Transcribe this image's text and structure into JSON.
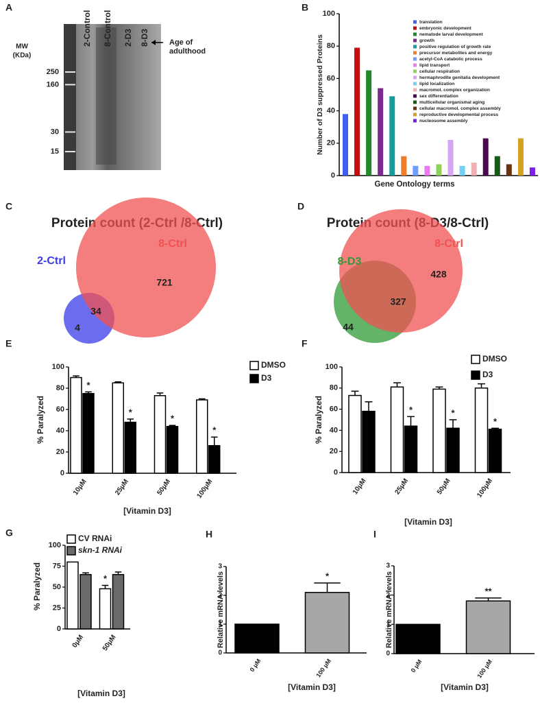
{
  "chart_data": [
    {
      "type": "gel",
      "panel": "A",
      "lanes": [
        "2-Control",
        "8-Control",
        "2-D3",
        "8-D3"
      ],
      "mw_label": [
        "MW",
        "(KDa)"
      ],
      "markers": [
        250,
        160,
        30,
        15
      ],
      "annotation": [
        "Age of",
        "adulthood"
      ]
    },
    {
      "type": "bar",
      "panel": "B",
      "ylabel": "Number of D3 suppressed Proteins",
      "xlabel": "Gene Ontology terms",
      "categories": [
        "translation",
        "embryonic development",
        "nematode larval development",
        "growth",
        "positive regulation of growth rate",
        "precursor metabolites and energy",
        "acetyl-CoA catabolic process",
        "lipid transport",
        "cellular respiration",
        "hermaphrodite genitalia development",
        "lipid localization",
        "macromol. complex organization",
        "sex differentiation",
        "multicellular organismal aging",
        "cellular macromol. complex assembly",
        "reproductive developmental process",
        "nucleosome assembly"
      ],
      "values": [
        38,
        79,
        65,
        54,
        49,
        12,
        6,
        6,
        7,
        22,
        6,
        8,
        23,
        12,
        7,
        23,
        5
      ],
      "colors": [
        "#3f5ef0",
        "#c40d0d",
        "#1e8a2a",
        "#7a2c8c",
        "#179c9c",
        "#f07d2c",
        "#6f9cff",
        "#ee7bee",
        "#8fd25a",
        "#d6a6f5",
        "#6fd2f2",
        "#eeb0b0",
        "#4a0a50",
        "#155a16",
        "#6a3212",
        "#d6a020",
        "#7c1ee6"
      ],
      "ylim": [
        0,
        100
      ],
      "yticks": [
        0,
        20,
        40,
        60,
        80,
        100
      ],
      "legend": true
    },
    {
      "type": "venn",
      "panel": "C",
      "title": "Protein count (2-Ctrl /8-Ctrl)",
      "sets": [
        {
          "name": "2-Ctrl",
          "color": "#3b3bea"
        },
        {
          "name": "8-Ctrl",
          "color": "#f05252"
        }
      ],
      "values": [
        4,
        34,
        721
      ]
    },
    {
      "type": "venn",
      "panel": "D",
      "title": "Protein count (8-D3/8-Ctrl)",
      "sets": [
        {
          "name": "8-D3",
          "color": "#2f9a37"
        },
        {
          "name": "8-Ctrl",
          "color": "#f05252"
        }
      ],
      "values": [
        44,
        327,
        428
      ]
    },
    {
      "type": "bar",
      "panel": "E",
      "ylabel": "% Paralyzed",
      "xlabel": "[Vitamin D3]",
      "categories": [
        "10μM",
        "25μM",
        "50μM",
        "100μM"
      ],
      "series": [
        {
          "name": "DMSO",
          "color": "#ffffff",
          "values": [
            90,
            85,
            73,
            69
          ],
          "errors": [
            1.5,
            1,
            2.5,
            1
          ]
        },
        {
          "name": "D3",
          "color": "#000000",
          "values": [
            75,
            48,
            44,
            26
          ],
          "errors": [
            1.5,
            3,
            1,
            8
          ],
          "marks": [
            "*",
            "*",
            "*",
            "*"
          ]
        }
      ],
      "ylim": [
        0,
        100
      ],
      "yticks": [
        0,
        20,
        40,
        60,
        80,
        100
      ],
      "legend": true
    },
    {
      "type": "bar",
      "panel": "F",
      "ylabel": "% Paralyzed",
      "xlabel": "[Vitamin D3]",
      "categories": [
        "10μM",
        "25μM",
        "50μM",
        "100μM"
      ],
      "series": [
        {
          "name": "DMSO",
          "color": "#ffffff",
          "values": [
            73,
            81,
            79,
            80
          ],
          "errors": [
            4,
            4,
            2,
            4
          ]
        },
        {
          "name": "D3",
          "color": "#000000",
          "values": [
            58,
            44,
            42,
            41
          ],
          "errors": [
            9,
            9,
            8,
            1
          ],
          "marks": [
            null,
            "*",
            "*",
            "*"
          ]
        }
      ],
      "ylim": [
        0,
        100
      ],
      "yticks": [
        0,
        20,
        40,
        60,
        80,
        100
      ],
      "legend": true
    },
    {
      "type": "bar",
      "panel": "G",
      "ylabel": "% Paralyzed",
      "xlabel": "[Vitamin D3]",
      "categories": [
        "0μM",
        "50μM"
      ],
      "series": [
        {
          "name": "CV RNAi",
          "color": "#ffffff",
          "values": [
            80,
            48
          ],
          "errors": [
            null,
            4
          ],
          "marks": [
            null,
            "*"
          ]
        },
        {
          "name": "skn-1 RNAi",
          "color": "#6a6a6a",
          "italic": true,
          "values": [
            65,
            65
          ],
          "errors": [
            2,
            3
          ]
        }
      ],
      "ylim": [
        0,
        100
      ],
      "yticks": [
        0,
        25,
        50,
        75,
        100
      ],
      "legend": true
    },
    {
      "type": "bar",
      "panel": "H",
      "ylabel": "Relative mRNA levels",
      "xlabel": "[Vitamin D3]",
      "categories": [
        "0 μM",
        "100 μM"
      ],
      "values": [
        1,
        2.1
      ],
      "colors": [
        "#000000",
        "#a7a7aa"
      ],
      "errors": [
        null,
        0.33
      ],
      "marks": [
        null,
        "*"
      ],
      "ylim": [
        0,
        3
      ],
      "yticks": [
        0,
        1,
        2,
        3
      ]
    },
    {
      "type": "bar",
      "panel": "I",
      "ylabel": "Relative mRNA levels",
      "xlabel": "[Vitamin D3]",
      "categories": [
        "0 μM",
        "100 μM"
      ],
      "values": [
        1,
        1.8
      ],
      "colors": [
        "#000000",
        "#a7a7aa"
      ],
      "errors": [
        null,
        0.1
      ],
      "marks": [
        null,
        "**"
      ],
      "ylim": [
        0,
        3
      ],
      "yticks": [
        0,
        1,
        2,
        3
      ]
    }
  ]
}
